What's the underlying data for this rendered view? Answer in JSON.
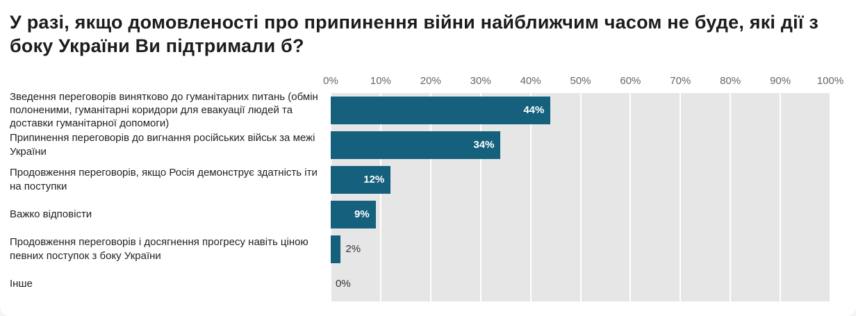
{
  "chart_data": {
    "type": "bar",
    "orientation": "horizontal",
    "title": "У разі, якщо домовленості про припинення війни найближчим часом не буде, які дії з боку України Ви підтримали б?",
    "categories": [
      "Зведення переговорів винятково до гуманітарних питань (обмін полоненими, гуманітарні коридори для евакуації людей та доставки гуманітарної допомоги)",
      "Припинення переговорів до вигнання російських військ за межі України",
      "Продовження переговорів, якщо Росія демонструє здатність іти на поступки",
      "Важко відповісти",
      "Продовження переговорів і досягнення прогресу навіть ціною певних поступок з боку України",
      "Інше"
    ],
    "values": [
      44,
      34,
      12,
      9,
      2,
      0
    ],
    "value_labels": [
      "44%",
      "34%",
      "12%",
      "9%",
      "2%",
      "0%"
    ],
    "x_ticks": [
      "0%",
      "10%",
      "20%",
      "30%",
      "40%",
      "50%",
      "60%",
      "70%",
      "80%",
      "90%",
      "100%"
    ],
    "xlim": [
      0,
      100
    ],
    "grid": true,
    "legend_position": "none",
    "inside_label_threshold": 8,
    "colors": {
      "bar": "#15607d",
      "plot_background": "#e6e6e6",
      "gridline": "#ffffff",
      "value_inside": "#ffffff",
      "value_outside": "#333333",
      "axis_text": "#666666",
      "label_text": "#222222",
      "title_text": "#1c1c1c"
    }
  }
}
